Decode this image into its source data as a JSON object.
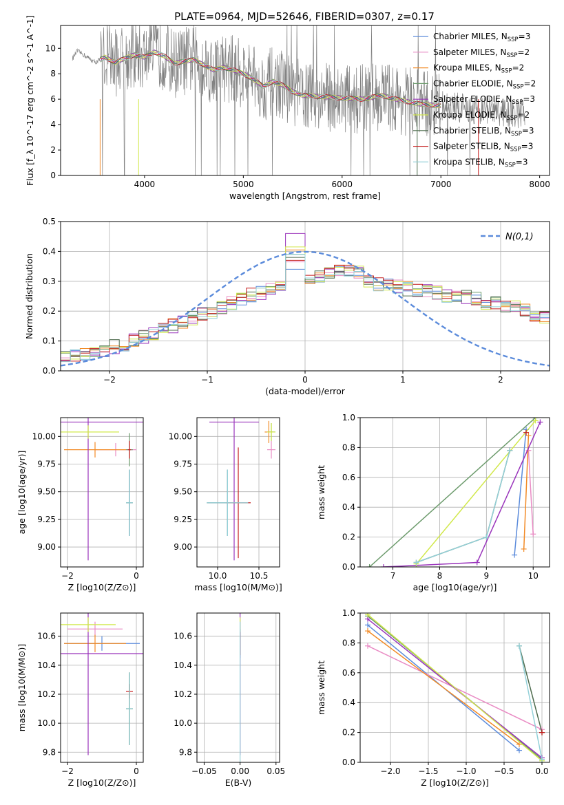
{
  "figure_title": "PLATE=0964, MJD=52646, FIBERID=0307, z=0.17",
  "legend": [
    {
      "model": "Chabrier MILES",
      "n": "3",
      "color": "#5b8bdb"
    },
    {
      "model": "Salpeter MILES",
      "n": "2",
      "color": "#e98bc4"
    },
    {
      "model": "Kroupa MILES",
      "n": "2",
      "color": "#f28a25"
    },
    {
      "model": "Chabrier ELODIE",
      "n": "2",
      "color": "#6c9b6c"
    },
    {
      "model": "Salpeter ELODIE",
      "n": "3",
      "color": "#9933bb"
    },
    {
      "model": "Kroupa ELODIE",
      "n": "2",
      "color": "#d1e84a"
    },
    {
      "model": "Chabrier STELIB",
      "n": "3",
      "color": "#4d6b4d"
    },
    {
      "model": "Salpeter STELIB",
      "n": "3",
      "color": "#c41b1b"
    },
    {
      "model": "Kroupa STELIB",
      "n": "3",
      "color": "#93d0d8"
    }
  ],
  "chart_data": [
    {
      "id": "spectrum",
      "type": "line",
      "title": "PLATE=0964, MJD=52646, FIBERID=0307, z=0.17",
      "xlabel": "wavelength [Angstrom, rest frame]",
      "ylabel": "Flux [f_λ 10^-17 erg cm^-2 s^-1 A^-1]",
      "xlim": [
        3150,
        8100
      ],
      "ylim": [
        0,
        11.8
      ],
      "xticks": [
        4000,
        5000,
        6000,
        7000,
        8000
      ],
      "yticks": [
        0,
        2,
        4,
        6,
        8,
        10
      ],
      "data_color": "#808080",
      "data_noise_from": 3550,
      "model_start": 3550,
      "model_end": 7000,
      "continuum": [
        [
          3270,
          9.2
        ],
        [
          3320,
          9.8
        ],
        [
          3400,
          9.4
        ],
        [
          3500,
          8.9
        ],
        [
          3600,
          9.3
        ],
        [
          3700,
          8.9
        ],
        [
          3800,
          9.2
        ],
        [
          3900,
          9.5
        ],
        [
          4000,
          9.3
        ],
        [
          4100,
          9.7
        ],
        [
          4200,
          9.4
        ],
        [
          4300,
          8.8
        ],
        [
          4400,
          9.0
        ],
        [
          4500,
          9.1
        ],
        [
          4600,
          8.7
        ],
        [
          4700,
          8.3
        ],
        [
          4800,
          8.5
        ],
        [
          4900,
          8.3
        ],
        [
          5000,
          8.0
        ],
        [
          5100,
          7.6
        ],
        [
          5200,
          7.0
        ],
        [
          5300,
          7.4
        ],
        [
          5400,
          7.1
        ],
        [
          5500,
          6.6
        ],
        [
          5600,
          6.3
        ],
        [
          5800,
          6.2
        ],
        [
          6000,
          6.1
        ],
        [
          6200,
          6.0
        ],
        [
          6400,
          6.3
        ],
        [
          6600,
          5.9
        ],
        [
          6800,
          5.6
        ],
        [
          7000,
          5.5
        ],
        [
          7200,
          5.3
        ],
        [
          7400,
          5.2
        ],
        [
          7600,
          5.0
        ],
        [
          7800,
          4.8
        ],
        [
          7850,
          4.9
        ]
      ]
    },
    {
      "id": "residuals",
      "type": "histogram",
      "xlabel": "(data-model)/error",
      "ylabel": "Normed distribution",
      "xlim": [
        -2.5,
        2.5
      ],
      "ylim": [
        0,
        0.5
      ],
      "xticks": [
        -2,
        -1,
        0,
        1,
        2
      ],
      "yticks": [
        0.0,
        0.1,
        0.2,
        0.3,
        0.4,
        0.5
      ],
      "gaussian_label": "N(0,1)",
      "gaussian_color": "#5b8bdb",
      "bin_width": 0.1,
      "envelope": [
        0.045,
        0.05,
        0.055,
        0.06,
        0.07,
        0.08,
        0.09,
        0.1,
        0.115,
        0.125,
        0.14,
        0.15,
        0.165,
        0.175,
        0.19,
        0.2,
        0.215,
        0.225,
        0.24,
        0.255,
        0.26,
        0.27,
        0.28,
        0.29,
        0.3,
        0.305,
        0.315,
        0.325,
        0.33,
        0.335,
        0.33,
        0.3,
        0.29,
        0.285,
        0.28,
        0.275,
        0.27,
        0.265,
        0.26,
        0.255,
        0.25,
        0.245,
        0.24,
        0.23,
        0.225,
        0.215,
        0.21,
        0.2,
        0.19,
        0.18,
        0.17,
        0.16,
        0.15,
        0.14,
        0.13,
        0.12,
        0.11,
        0.1,
        0.09,
        0.085,
        0.08,
        0.075,
        0.07,
        0.065,
        0.06,
        0.055,
        0.05,
        0.045,
        0.042,
        0.04
      ],
      "peaks": [
        0.34,
        0.365,
        0.405,
        0.39,
        0.46,
        0.415,
        0.38,
        0.37,
        0.39
      ]
    },
    {
      "id": "age-vs-Z",
      "type": "scatter",
      "xlabel": "Z [log10(Z/Z⊙)]",
      "ylabel": "age [log10(age/yr)]",
      "xlim": [
        -2.2,
        0.2
      ],
      "ylim": [
        8.82,
        10.17
      ],
      "xticks": [
        -2,
        0
      ],
      "yticks": [
        9.0,
        9.25,
        9.5,
        9.75,
        10.0
      ],
      "points": [
        {
          "series": 0,
          "x": -0.2,
          "y": 9.4,
          "xerr": 0.08,
          "yerr": 0.3
        },
        {
          "series": 1,
          "x": -0.6,
          "y": 9.88,
          "xerr": 0.6,
          "yerr": 0.06
        },
        {
          "series": 2,
          "x": -1.2,
          "y": 9.88,
          "xerr": 0.9,
          "yerr": 0.07
        },
        {
          "series": 3,
          "x": -0.2,
          "y": 9.88,
          "xerr": 0.1,
          "yerr": 0.15
        },
        {
          "series": 4,
          "x": -1.4,
          "y": 10.13,
          "xerr": 1.6,
          "yerr": 1.25
        },
        {
          "series": 5,
          "x": -1.4,
          "y": 10.04,
          "xerr": 0.9,
          "yerr": 0.06
        },
        {
          "series": 6,
          "x": -0.2,
          "y": 9.4,
          "xerr": 0.1,
          "yerr": 0.3
        },
        {
          "series": 7,
          "x": -0.2,
          "y": 9.88,
          "xerr": 0.05,
          "yerr": 0.08
        },
        {
          "series": 8,
          "x": -0.2,
          "y": 9.4,
          "xerr": 0.1,
          "yerr": 0.3
        }
      ]
    },
    {
      "id": "age-vs-mass",
      "type": "scatter",
      "xlabel": "mass [log10(M/M⊙)]",
      "ylabel": "",
      "xlim": [
        9.75,
        10.75
      ],
      "ylim": [
        8.82,
        10.17
      ],
      "xticks": [
        10.0,
        10.5
      ],
      "yticks": [
        9.0,
        9.25,
        9.5,
        9.75,
        10.0
      ],
      "points": [
        {
          "series": 0,
          "x": 10.12,
          "y": 9.4,
          "xerr": 0.25,
          "yerr": 0.3
        },
        {
          "series": 1,
          "x": 10.65,
          "y": 9.88,
          "xerr": 0.05,
          "yerr": 0.08
        },
        {
          "series": 2,
          "x": 10.62,
          "y": 10.04,
          "xerr": 0.05,
          "yerr": 0.1
        },
        {
          "series": 3,
          "x": 10.65,
          "y": 10.04,
          "xerr": 0.05,
          "yerr": 0.08
        },
        {
          "series": 4,
          "x": 10.2,
          "y": 10.13,
          "xerr": 0.3,
          "yerr": 1.25
        },
        {
          "series": 5,
          "x": 10.65,
          "y": 10.04,
          "xerr": 0.05,
          "yerr": 0.08
        },
        {
          "series": 6,
          "x": 10.12,
          "y": 9.4,
          "xerr": 0.25,
          "yerr": 0.3
        },
        {
          "series": 7,
          "x": 10.25,
          "y": 9.4,
          "xerr": 0.15,
          "yerr": 0.5
        },
        {
          "series": 8,
          "x": 10.12,
          "y": 9.4,
          "xerr": 0.25,
          "yerr": 0.3
        }
      ]
    },
    {
      "id": "weight-vs-age",
      "type": "line",
      "xlabel": "age [log10(age/yr)]",
      "ylabel": "mass weight",
      "xlim": [
        6.3,
        10.35
      ],
      "ylim": [
        0,
        1
      ],
      "xticks": [
        7,
        8,
        9,
        10
      ],
      "yticks": [
        0.0,
        0.2,
        0.4,
        0.6,
        0.8,
        1.0
      ],
      "series": [
        {
          "series": 0,
          "x": [
            9.6,
            9.85
          ],
          "y": [
            0.08,
            0.92
          ]
        },
        {
          "series": 1,
          "x": [
            9.9,
            10.0
          ],
          "y": [
            0.78,
            0.22
          ]
        },
        {
          "series": 2,
          "x": [
            9.8,
            9.9
          ],
          "y": [
            0.12,
            0.88
          ]
        },
        {
          "series": 3,
          "x": [
            6.5,
            10.05
          ],
          "y": [
            0.0,
            1.0
          ]
        },
        {
          "series": 4,
          "x": [
            6.8,
            8.8,
            10.15
          ],
          "y": [
            0.0,
            0.03,
            0.97
          ]
        },
        {
          "series": 5,
          "x": [
            7.5,
            10.05
          ],
          "y": [
            0.02,
            0.98
          ]
        },
        {
          "series": 6,
          "x": [
            7.5,
            9.0,
            9.5
          ],
          "y": [
            0.03,
            0.2,
            0.78
          ]
        },
        {
          "series": 7,
          "x": [
            9.85
          ],
          "y": [
            0.9
          ]
        },
        {
          "series": 8,
          "x": [
            7.5,
            9.0,
            9.5
          ],
          "y": [
            0.03,
            0.2,
            0.78
          ]
        }
      ]
    },
    {
      "id": "mass-vs-Z",
      "type": "scatter",
      "xlabel": "Z [log10(Z/Z⊙)]",
      "ylabel": "mass [log10(M/M⊙)]",
      "xlim": [
        -2.2,
        0.2
      ],
      "ylim": [
        9.73,
        10.76
      ],
      "xticks": [
        -2,
        0
      ],
      "yticks": [
        9.8,
        10.0,
        10.2,
        10.4,
        10.6
      ],
      "points": [
        {
          "series": 0,
          "x": -1.0,
          "y": 10.55,
          "xerr": 1.1,
          "yerr": 0.05
        },
        {
          "series": 1,
          "x": -1.2,
          "y": 10.65,
          "xerr": 0.8,
          "yerr": 0.05
        },
        {
          "series": 2,
          "x": -1.2,
          "y": 10.55,
          "xerr": 0.9,
          "yerr": 0.06
        },
        {
          "series": 3,
          "x": -0.2,
          "y": 10.1,
          "xerr": 0.1,
          "yerr": 0.25
        },
        {
          "series": 4,
          "x": -1.4,
          "y": 10.48,
          "xerr": 1.6,
          "yerr": 0.7
        },
        {
          "series": 5,
          "x": -1.4,
          "y": 10.68,
          "xerr": 0.8,
          "yerr": 0.05
        },
        {
          "series": 6,
          "x": -0.2,
          "y": 10.1,
          "xerr": 0.1,
          "yerr": 0.25
        },
        {
          "series": 7,
          "x": -0.2,
          "y": 10.22,
          "xerr": 0.1,
          "yerr": 0.05
        },
        {
          "series": 8,
          "x": -0.2,
          "y": 10.1,
          "xerr": 0.1,
          "yerr": 0.25
        }
      ]
    },
    {
      "id": "mass-vs-EBV",
      "type": "scatter",
      "xlabel": "E(B-V)",
      "ylabel": "",
      "xlim": [
        -0.06,
        0.055
      ],
      "ylim": [
        9.73,
        10.76
      ],
      "xticks": [
        -0.05,
        0.0,
        0.05
      ],
      "yticks": [
        9.8,
        10.0,
        10.2,
        10.4,
        10.6
      ],
      "points": [
        {
          "series": 0,
          "x": 0.0,
          "y": 10.55,
          "xerr": 0,
          "yerr": 0.1
        },
        {
          "series": 4,
          "x": 0.0,
          "y": 10.48,
          "xerr": 0,
          "yerr": 0.7
        },
        {
          "series": 5,
          "x": 0.0,
          "y": 10.68,
          "xerr": 0,
          "yerr": 0.05
        },
        {
          "series": 7,
          "x": 0.0,
          "y": 10.55,
          "xerr": 0,
          "yerr": 0.08
        },
        {
          "series": 8,
          "x": 0.0,
          "y": 10.1,
          "xerr": 0,
          "yerr": 0.6
        }
      ]
    },
    {
      "id": "weight-vs-Z",
      "type": "line",
      "xlabel": "Z [log10(Z/Z⊙)]",
      "ylabel": "mass weight",
      "xlim": [
        -2.4,
        0.1
      ],
      "ylim": [
        0,
        1
      ],
      "xticks": [
        -2.0,
        -1.5,
        -1.0,
        -0.5,
        0.0
      ],
      "yticks": [
        0.0,
        0.2,
        0.4,
        0.6,
        0.8,
        1.0
      ],
      "series": [
        {
          "series": 0,
          "x": [
            -2.3,
            -0.3
          ],
          "y": [
            0.92,
            0.08
          ]
        },
        {
          "series": 1,
          "x": [
            -2.3,
            0.0
          ],
          "y": [
            0.78,
            0.22
          ]
        },
        {
          "series": 2,
          "x": [
            -2.3,
            -0.3
          ],
          "y": [
            0.88,
            0.12
          ]
        },
        {
          "series": 3,
          "x": [
            -2.3,
            0.0
          ],
          "y": [
            0.98,
            0.02
          ]
        },
        {
          "series": 4,
          "x": [
            -2.3,
            0.0
          ],
          "y": [
            0.96,
            0.03
          ]
        },
        {
          "series": 5,
          "x": [
            -2.3,
            0.0
          ],
          "y": [
            0.99,
            0.01
          ]
        },
        {
          "series": 6,
          "x": [
            -0.3,
            0.0
          ],
          "y": [
            0.78,
            0.2
          ]
        },
        {
          "series": 7,
          "x": [
            0.0
          ],
          "y": [
            0.2
          ]
        },
        {
          "series": 8,
          "x": [
            -0.3,
            0.0
          ],
          "y": [
            0.78,
            0.02
          ]
        }
      ]
    }
  ]
}
